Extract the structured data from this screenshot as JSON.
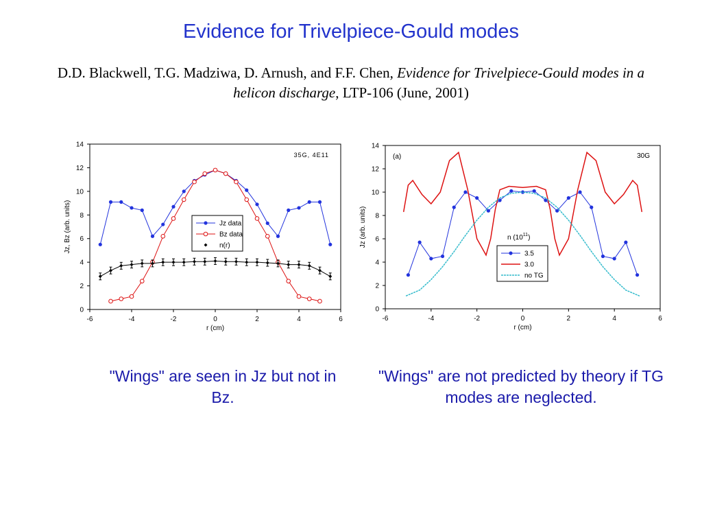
{
  "slide": {
    "title": "Evidence for Trivelpiece-Gould modes",
    "citation_authors": "D.D. Blackwell, T.G. Madziwa, D. Arnush, and F.F. Chen, ",
    "citation_title": "Evidence for Trivelpiece-Gould modes in a helicon discharge",
    "citation_rest": ", LTP-106 (June, 2001)",
    "caption_left": "\"Wings\" are seen in Jz but not in Bz.",
    "caption_right": "\"Wings\" are not predicted by theory if TG modes are neglected."
  },
  "chart_data": [
    {
      "type": "line",
      "annotation": "35G, 4E11",
      "xlabel": "r (cm)",
      "ylabel": "Jz, Bz (arb. units)",
      "xlim": [
        -6,
        6
      ],
      "ylim": [
        0,
        14
      ],
      "xticks": [
        "-6",
        "-4",
        "-2",
        "0",
        "2",
        "4",
        "6"
      ],
      "yticks": [
        "0",
        "2",
        "4",
        "6",
        "8",
        "10",
        "12",
        "14"
      ],
      "legend_placement": "center",
      "grid": false,
      "series": [
        {
          "name": "Jz data",
          "color": "#2233dd",
          "marker": "filled-circle",
          "x": [
            -5.5,
            -5,
            -4.5,
            -4,
            -3.5,
            -3,
            -2.5,
            -2,
            -1.5,
            -1,
            -0.5,
            0,
            0.5,
            1,
            1.5,
            2,
            2.5,
            3,
            3.5,
            4,
            4.5,
            5,
            5.5
          ],
          "y": [
            5.5,
            9.1,
            9.1,
            8.6,
            8.4,
            6.2,
            7.2,
            8.7,
            10.0,
            10.9,
            11.4,
            11.8,
            11.5,
            10.9,
            10.1,
            8.9,
            7.3,
            6.2,
            8.4,
            8.6,
            9.1,
            9.1,
            5.5
          ]
        },
        {
          "name": "Bz data",
          "color": "#dd1111",
          "marker": "open-circle",
          "x": [
            -5,
            -4.5,
            -4,
            -3.5,
            -3,
            -2.5,
            -2,
            -1.5,
            -1,
            -0.5,
            0,
            0.5,
            1,
            1.5,
            2,
            2.5,
            3,
            3.5,
            4,
            4.5,
            5
          ],
          "y": [
            0.7,
            0.9,
            1.1,
            2.4,
            4.0,
            6.2,
            7.7,
            9.3,
            10.8,
            11.5,
            11.8,
            11.5,
            10.8,
            9.3,
            7.7,
            6.2,
            4.0,
            2.4,
            1.1,
            0.9,
            0.7
          ]
        },
        {
          "name": "n(r)",
          "color": "#000000",
          "marker": "small-diamond-with-errorbars",
          "x": [
            -5.5,
            -5,
            -4.5,
            -4,
            -3.5,
            -3,
            -2.5,
            -2,
            -1.5,
            -1,
            -0.5,
            0,
            0.5,
            1,
            1.5,
            2,
            2.5,
            3,
            3.5,
            4,
            4.5,
            5,
            5.5
          ],
          "y": [
            2.8,
            3.3,
            3.7,
            3.8,
            3.9,
            3.9,
            4.0,
            4.0,
            4.0,
            4.05,
            4.05,
            4.1,
            4.05,
            4.05,
            4.0,
            4.0,
            3.95,
            3.9,
            3.8,
            3.8,
            3.7,
            3.3,
            2.8
          ]
        }
      ]
    },
    {
      "type": "line",
      "annotation_left": "(a)",
      "annotation_right": "30G",
      "xlabel": "r (cm)",
      "ylabel": "Jz (arb. units)",
      "xlim": [
        -6,
        6
      ],
      "ylim": [
        0,
        14
      ],
      "xticks": [
        "-6",
        "-4",
        "-2",
        "0",
        "2",
        "4",
        "6"
      ],
      "yticks": [
        "0",
        "2",
        "4",
        "6",
        "8",
        "10",
        "12",
        "14"
      ],
      "legend_title": "n (10",
      "legend_title_sup": "11",
      "legend_title_end": ")",
      "legend_placement": "center-right",
      "grid": false,
      "series": [
        {
          "name": "3.5",
          "color": "#2233dd",
          "marker": "filled-circle",
          "x": [
            -5,
            -4.5,
            -4,
            -3.5,
            -3,
            -2.5,
            -2,
            -1.5,
            -1,
            -0.5,
            0,
            0.5,
            1,
            1.5,
            2,
            2.5,
            3,
            3.5,
            4,
            4.5,
            5
          ],
          "y": [
            2.9,
            5.7,
            4.3,
            4.5,
            8.7,
            10.0,
            9.5,
            8.4,
            9.3,
            10.1,
            10.0,
            10.1,
            9.3,
            8.4,
            9.5,
            10.0,
            8.7,
            4.5,
            4.3,
            5.7,
            2.9
          ]
        },
        {
          "name": "3.0",
          "color": "#dd1111",
          "marker": "none",
          "x": [
            -5.2,
            -5.0,
            -4.8,
            -4.4,
            -4.0,
            -3.6,
            -3.2,
            -2.8,
            -2.4,
            -2.0,
            -1.6,
            -1.4,
            -1.2,
            -1.0,
            -0.6,
            0.0,
            0.6,
            1.0,
            1.2,
            1.4,
            1.6,
            2.0,
            2.4,
            2.8,
            3.2,
            3.6,
            4.0,
            4.4,
            4.8,
            5.0,
            5.2
          ],
          "y": [
            8.3,
            10.6,
            11.0,
            9.8,
            9.0,
            10.0,
            12.7,
            13.4,
            10.2,
            6.0,
            4.6,
            6.0,
            8.5,
            10.2,
            10.5,
            10.4,
            10.5,
            10.2,
            8.5,
            6.0,
            4.6,
            6.0,
            10.2,
            13.4,
            12.7,
            10.0,
            9.0,
            9.8,
            11.0,
            10.6,
            8.3
          ]
        },
        {
          "name": "no TG",
          "color": "#33bbcc",
          "marker": "none",
          "x": [
            -5.1,
            -4.5,
            -4.0,
            -3.5,
            -3.0,
            -2.5,
            -2.0,
            -1.5,
            -1.0,
            -0.5,
            0.0,
            0.5,
            1.0,
            1.5,
            2.0,
            2.5,
            3.0,
            3.5,
            4.0,
            4.5,
            5.1
          ],
          "y": [
            1.1,
            1.6,
            2.5,
            3.6,
            4.9,
            6.3,
            7.6,
            8.7,
            9.5,
            9.9,
            10.0,
            9.9,
            9.5,
            8.7,
            7.6,
            6.3,
            4.9,
            3.6,
            2.5,
            1.6,
            1.1
          ]
        }
      ]
    }
  ]
}
